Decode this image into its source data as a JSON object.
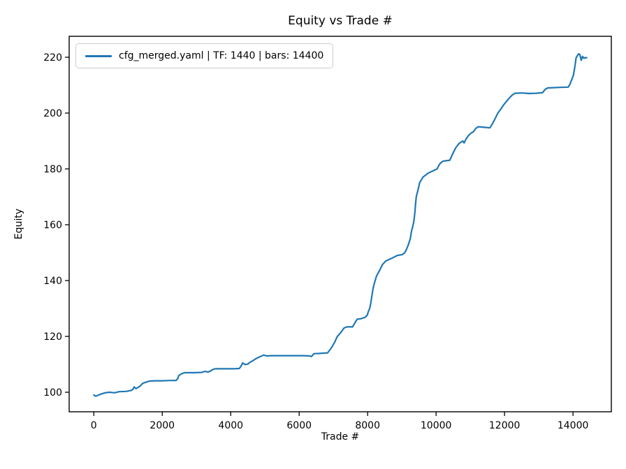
{
  "figure": {
    "background": "#ffffff"
  },
  "chart_data": {
    "type": "line",
    "title": "Equity vs Trade #",
    "xlabel": "Trade #",
    "ylabel": "Equity",
    "grid": false,
    "legend": {
      "position": "upper-left",
      "entries": [
        {
          "label": "cfg_merged.yaml | TF: 1440 | bars: 14400",
          "color": "#1f77b4"
        }
      ]
    },
    "line_color": "#1f77b4",
    "axis_color": "#000000",
    "xlim": [
      -720,
      15120
    ],
    "ylim": [
      93,
      227.5
    ],
    "x_ticks": [
      0,
      2000,
      4000,
      6000,
      8000,
      10000,
      12000,
      14000
    ],
    "y_ticks": [
      100,
      120,
      140,
      160,
      180,
      200,
      220
    ],
    "series": [
      {
        "name": "cfg_merged.yaml | TF: 1440 | bars: 14400",
        "points": [
          [
            0,
            99.0
          ],
          [
            60,
            98.6
          ],
          [
            120,
            98.9
          ],
          [
            200,
            99.3
          ],
          [
            330,
            99.8
          ],
          [
            460,
            100.0
          ],
          [
            600,
            99.8
          ],
          [
            740,
            100.2
          ],
          [
            940,
            100.3
          ],
          [
            1080,
            100.6
          ],
          [
            1140,
            101.0
          ],
          [
            1180,
            101.9
          ],
          [
            1230,
            101.3
          ],
          [
            1290,
            101.7
          ],
          [
            1360,
            102.3
          ],
          [
            1430,
            103.2
          ],
          [
            1550,
            103.7
          ],
          [
            1630,
            104.0
          ],
          [
            1800,
            104.1
          ],
          [
            2000,
            104.1
          ],
          [
            2200,
            104.2
          ],
          [
            2400,
            104.2
          ],
          [
            2450,
            104.8
          ],
          [
            2480,
            105.9
          ],
          [
            2520,
            106.3
          ],
          [
            2580,
            106.7
          ],
          [
            2660,
            107.0
          ],
          [
            2900,
            107.0
          ],
          [
            3150,
            107.1
          ],
          [
            3260,
            107.5
          ],
          [
            3330,
            107.2
          ],
          [
            3410,
            107.6
          ],
          [
            3470,
            108.1
          ],
          [
            3540,
            108.4
          ],
          [
            3700,
            108.4
          ],
          [
            3900,
            108.4
          ],
          [
            4100,
            108.4
          ],
          [
            4250,
            108.5
          ],
          [
            4300,
            109.3
          ],
          [
            4350,
            110.5
          ],
          [
            4420,
            109.9
          ],
          [
            4500,
            110.1
          ],
          [
            4570,
            110.8
          ],
          [
            4650,
            111.3
          ],
          [
            4720,
            111.9
          ],
          [
            4830,
            112.6
          ],
          [
            4960,
            113.3
          ],
          [
            5060,
            113.0
          ],
          [
            5200,
            113.1
          ],
          [
            5500,
            113.1
          ],
          [
            5800,
            113.1
          ],
          [
            6100,
            113.1
          ],
          [
            6300,
            113.0
          ],
          [
            6360,
            112.8
          ],
          [
            6430,
            113.8
          ],
          [
            6600,
            113.9
          ],
          [
            6830,
            114.1
          ],
          [
            6940,
            115.9
          ],
          [
            7040,
            118.0
          ],
          [
            7110,
            119.9
          ],
          [
            7210,
            121.3
          ],
          [
            7310,
            123.0
          ],
          [
            7390,
            123.4
          ],
          [
            7560,
            123.4
          ],
          [
            7650,
            125.3
          ],
          [
            7700,
            126.2
          ],
          [
            7790,
            126.3
          ],
          [
            7920,
            126.8
          ],
          [
            7990,
            127.6
          ],
          [
            8020,
            128.9
          ],
          [
            8060,
            130.0
          ],
          [
            8090,
            131.8
          ],
          [
            8130,
            135.0
          ],
          [
            8160,
            137.2
          ],
          [
            8200,
            139.2
          ],
          [
            8260,
            141.6
          ],
          [
            8330,
            143.2
          ],
          [
            8400,
            144.9
          ],
          [
            8430,
            145.7
          ],
          [
            8530,
            147.0
          ],
          [
            8600,
            147.4
          ],
          [
            8740,
            148.2
          ],
          [
            8870,
            149.0
          ],
          [
            9010,
            149.3
          ],
          [
            9080,
            149.9
          ],
          [
            9120,
            150.8
          ],
          [
            9180,
            152.5
          ],
          [
            9220,
            154.0
          ],
          [
            9250,
            155.2
          ],
          [
            9280,
            157.6
          ],
          [
            9320,
            159.5
          ],
          [
            9350,
            161.2
          ],
          [
            9380,
            164.3
          ],
          [
            9400,
            167.5
          ],
          [
            9420,
            170.0
          ],
          [
            9490,
            173.4
          ],
          [
            9520,
            175.1
          ],
          [
            9620,
            177.1
          ],
          [
            9760,
            178.4
          ],
          [
            9890,
            179.2
          ],
          [
            10030,
            180.0
          ],
          [
            10100,
            181.7
          ],
          [
            10140,
            182.2
          ],
          [
            10210,
            182.8
          ],
          [
            10400,
            183.1
          ],
          [
            10470,
            185.0
          ],
          [
            10570,
            187.5
          ],
          [
            10670,
            189.1
          ],
          [
            10780,
            190.0
          ],
          [
            10820,
            189.3
          ],
          [
            10880,
            190.8
          ],
          [
            10950,
            192.0
          ],
          [
            11020,
            192.8
          ],
          [
            11090,
            193.3
          ],
          [
            11160,
            194.5
          ],
          [
            11230,
            195.1
          ],
          [
            11410,
            194.9
          ],
          [
            11570,
            194.7
          ],
          [
            11630,
            195.8
          ],
          [
            11700,
            197.4
          ],
          [
            11800,
            199.9
          ],
          [
            11900,
            201.6
          ],
          [
            11970,
            202.9
          ],
          [
            12070,
            204.4
          ],
          [
            12170,
            205.8
          ],
          [
            12240,
            206.6
          ],
          [
            12310,
            207.1
          ],
          [
            12520,
            207.2
          ],
          [
            12720,
            207.0
          ],
          [
            12920,
            207.1
          ],
          [
            13110,
            207.3
          ],
          [
            13190,
            208.5
          ],
          [
            13260,
            209.0
          ],
          [
            13420,
            209.1
          ],
          [
            13620,
            209.2
          ],
          [
            13860,
            209.3
          ],
          [
            13910,
            210.3
          ],
          [
            13970,
            212.2
          ],
          [
            14010,
            213.5
          ],
          [
            14040,
            215.5
          ],
          [
            14070,
            218.0
          ],
          [
            14090,
            219.7
          ],
          [
            14120,
            220.4
          ],
          [
            14160,
            221.2
          ],
          [
            14200,
            221.0
          ],
          [
            14240,
            218.9
          ],
          [
            14280,
            220.3
          ],
          [
            14320,
            219.6
          ],
          [
            14370,
            219.9
          ],
          [
            14400,
            219.8
          ]
        ]
      }
    ]
  }
}
